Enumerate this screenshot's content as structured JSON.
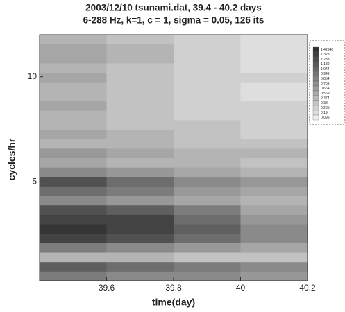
{
  "chart_data": {
    "type": "heatmap",
    "title": "2003/12/10 tsunami.dat, 39.4 - 40.2 days",
    "subtitle": "6-288 Hz, k=1, c = 1, sigma = 0.05, 126 its",
    "x_label": "time(day)",
    "y_label": "cycles/hr",
    "xlim": [
      39.4,
      40.2
    ],
    "ylim": [
      0.3,
      12
    ],
    "xticks": [
      39.6,
      39.8,
      40,
      40.2
    ],
    "yticks": [
      5,
      10
    ],
    "xbins": [
      39.4,
      39.6,
      39.8,
      40.0,
      40.2
    ],
    "ybins": [
      0.3,
      0.75,
      1.2,
      1.65,
      2.1,
      2.55,
      3.0,
      3.45,
      3.9,
      4.35,
      4.8,
      5.25,
      5.7,
      6.15,
      6.6,
      7.05,
      7.5,
      7.95,
      8.4,
      8.85,
      9.3,
      9.75,
      10.2,
      10.65,
      11.1,
      11.55,
      12.0
    ],
    "z": [
      [
        0.9,
        0.8,
        0.8,
        0.7
      ],
      [
        1.1,
        1.0,
        0.9,
        0.8
      ],
      [
        0.5,
        0.5,
        0.4,
        0.4
      ],
      [
        0.9,
        0.8,
        0.7,
        0.6
      ],
      [
        1.3,
        1.2,
        1.0,
        0.8
      ],
      [
        1.4,
        1.3,
        1.1,
        0.8
      ],
      [
        1.3,
        1.3,
        1.0,
        0.7
      ],
      [
        1.2,
        1.1,
        0.9,
        0.6
      ],
      [
        0.8,
        0.7,
        0.6,
        0.5
      ],
      [
        1.0,
        0.9,
        0.7,
        0.6
      ],
      [
        1.2,
        1.0,
        0.8,
        0.7
      ],
      [
        0.8,
        0.7,
        0.6,
        0.5
      ],
      [
        0.6,
        0.5,
        0.5,
        0.4
      ],
      [
        0.7,
        0.6,
        0.5,
        0.5
      ],
      [
        0.5,
        0.5,
        0.4,
        0.4
      ],
      [
        0.6,
        0.5,
        0.4,
        0.3
      ],
      [
        0.5,
        0.4,
        0.4,
        0.3
      ],
      [
        0.5,
        0.4,
        0.3,
        0.3
      ],
      [
        0.6,
        0.4,
        0.3,
        0.3
      ],
      [
        0.5,
        0.4,
        0.3,
        0.2
      ],
      [
        0.5,
        0.4,
        0.3,
        0.2
      ],
      [
        0.6,
        0.4,
        0.3,
        0.3
      ],
      [
        0.5,
        0.4,
        0.3,
        0.2
      ],
      [
        0.6,
        0.5,
        0.3,
        0.2
      ],
      [
        0.6,
        0.5,
        0.3,
        0.2
      ],
      [
        0.5,
        0.4,
        0.3,
        0.2
      ]
    ],
    "colorbar_levels": [
      1.42346,
      1.328,
      1.233,
      1.139,
      1.044,
      0.949,
      0.854,
      0.759,
      0.664,
      0.569,
      0.474,
      0.38,
      0.285,
      0.19,
      0.095
    ]
  }
}
